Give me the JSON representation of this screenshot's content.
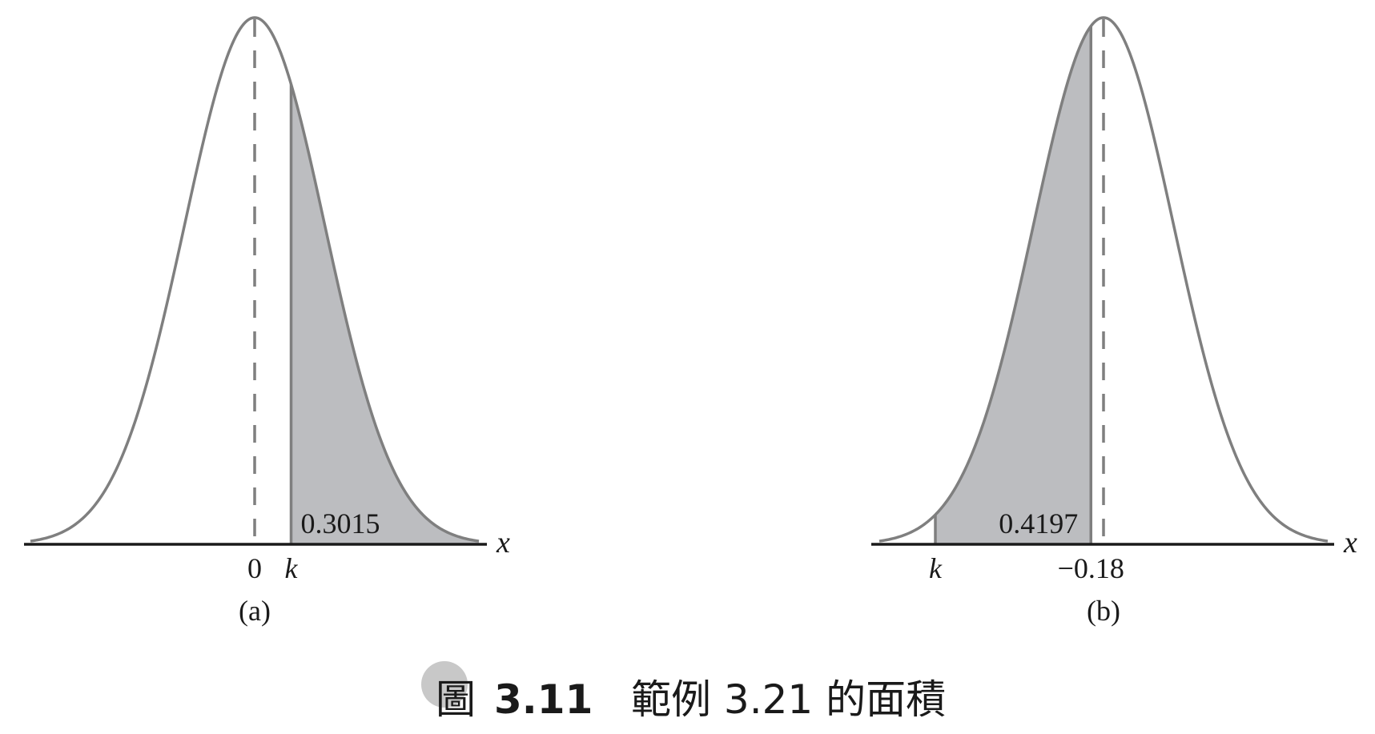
{
  "figure": {
    "label": "圖",
    "number": "3.11",
    "caption": "範例 3.21 的面積"
  },
  "colors": {
    "curve": "#7f7f7f",
    "shade": "#bcbdc0",
    "axis": "#1a1a1a",
    "text": "#1a1a1a",
    "badge": "#c8c8c8"
  },
  "chart_data": [
    {
      "type": "area",
      "panel_label": "(a)",
      "axis_label": "x",
      "ticks": [
        {
          "value": 0,
          "label": "0"
        },
        {
          "value": 0.52,
          "label": "k"
        }
      ],
      "mean": 0,
      "sd": 1,
      "xlim": [
        -3.2,
        3.2
      ],
      "shaded_region": {
        "from": 0.52,
        "to": 3.2,
        "area": 0.3015
      },
      "area_label": "0.3015"
    },
    {
      "type": "area",
      "panel_label": "(b)",
      "axis_label": "x",
      "ticks": [
        {
          "value": -2.4,
          "label": "k"
        },
        {
          "value": -0.18,
          "label": "−0.18"
        }
      ],
      "mean": 0,
      "sd": 1,
      "xlim": [
        -3.2,
        3.2
      ],
      "shaded_region": {
        "from": -2.4,
        "to": -0.18,
        "area": 0.4197
      },
      "area_label": "0.4197"
    }
  ]
}
